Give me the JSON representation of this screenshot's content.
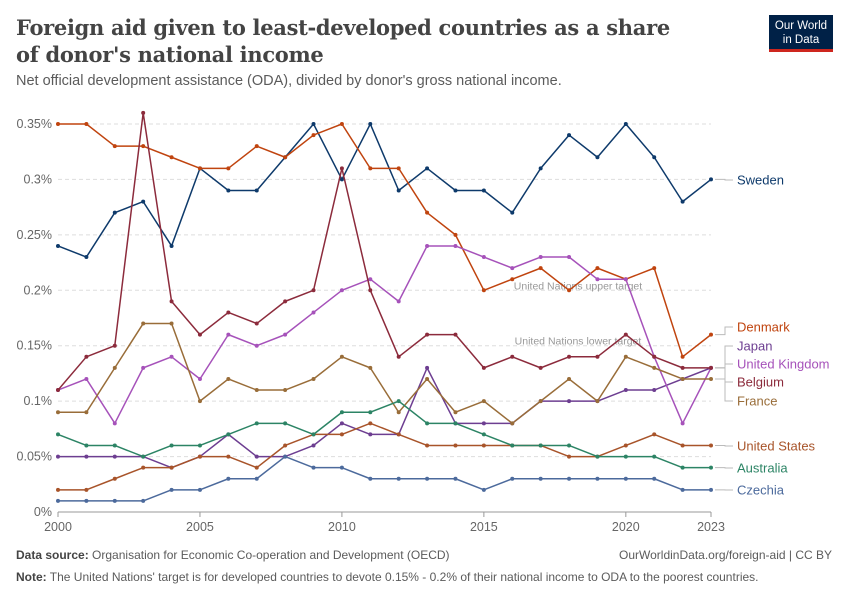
{
  "title": "Foreign aid given to least-developed countries as a share of donor's national income",
  "subtitle": "Net official development assistance (ODA), divided by donor's gross national income.",
  "logo": {
    "line1": "Our World",
    "line2": "in Data",
    "bg": "#002147",
    "accent": "#ce261e"
  },
  "footer": {
    "source_label": "Data source:",
    "source": "Organisation for Economic Co-operation and Development (OECD)",
    "url": "OurWorldinData.org/foreign-aid | CC BY",
    "note_label": "Note:",
    "note": "The United Nations' target is for developed countries to devote 0.15% - 0.2% of their national income to ODA to the poorest countries."
  },
  "chart_data": {
    "type": "line",
    "ylim": [
      0,
      0.35
    ],
    "yticks": [
      0,
      0.05,
      0.1,
      0.15,
      0.2,
      0.25,
      0.3,
      0.35
    ],
    "ytick_labels": [
      "0%",
      "0.05%",
      "0.1%",
      "0.15%",
      "0.2%",
      "0.25%",
      "0.3%",
      "0.35%"
    ],
    "xticks": [
      2000,
      2005,
      2010,
      2015,
      2020,
      2023
    ],
    "grid": "horizontal dashed",
    "legend": "right (line-end labels)",
    "x": [
      2000,
      2001,
      2002,
      2003,
      2004,
      2005,
      2006,
      2007,
      2008,
      2009,
      2010,
      2011,
      2012,
      2013,
      2014,
      2015,
      2016,
      2017,
      2018,
      2019,
      2020,
      2021,
      2022,
      2023
    ],
    "annotations": [
      {
        "text": "United Nations upper target",
        "y": 0.2
      },
      {
        "text": "United Nations lower target",
        "y": 0.15
      }
    ],
    "series": [
      {
        "name": "Sweden",
        "color": "#0e3a6b",
        "values": [
          0.24,
          0.23,
          0.27,
          0.28,
          0.24,
          0.31,
          0.29,
          0.29,
          0.32,
          0.35,
          0.3,
          0.35,
          0.29,
          0.31,
          0.29,
          0.29,
          0.27,
          0.31,
          0.34,
          0.32,
          0.35,
          0.32,
          0.28,
          0.3
        ]
      },
      {
        "name": "Denmark",
        "color": "#c0440f",
        "values": [
          0.35,
          0.35,
          0.33,
          0.33,
          0.32,
          0.31,
          0.31,
          0.33,
          0.32,
          0.34,
          0.35,
          0.31,
          0.31,
          0.27,
          0.25,
          0.2,
          0.21,
          0.22,
          0.2,
          0.22,
          0.21,
          0.22,
          0.14,
          0.16
        ]
      },
      {
        "name": "Japan",
        "color": "#6d3e91",
        "values": [
          0.05,
          0.05,
          0.05,
          0.05,
          0.04,
          0.05,
          0.07,
          0.05,
          0.05,
          0.06,
          0.08,
          0.07,
          0.07,
          0.13,
          0.08,
          0.08,
          0.08,
          0.1,
          0.1,
          0.1,
          0.11,
          0.11,
          0.12,
          0.13
        ]
      },
      {
        "name": "United Kingdom",
        "color": "#a652ba",
        "values": [
          0.11,
          0.12,
          0.08,
          0.13,
          0.14,
          0.12,
          0.16,
          0.15,
          0.16,
          0.18,
          0.2,
          0.21,
          0.19,
          0.24,
          0.24,
          0.23,
          0.22,
          0.23,
          0.23,
          0.21,
          0.21,
          0.14,
          0.08,
          0.13
        ]
      },
      {
        "name": "Belgium",
        "color": "#8c2b3c",
        "values": [
          0.11,
          0.14,
          0.15,
          0.36,
          0.19,
          0.16,
          0.18,
          0.17,
          0.19,
          0.2,
          0.31,
          0.2,
          0.14,
          0.16,
          0.16,
          0.13,
          0.14,
          0.13,
          0.14,
          0.14,
          0.16,
          0.14,
          0.13,
          0.13
        ]
      },
      {
        "name": "France",
        "color": "#996d39",
        "values": [
          0.09,
          0.09,
          0.13,
          0.17,
          0.17,
          0.1,
          0.12,
          0.11,
          0.11,
          0.12,
          0.14,
          0.13,
          0.09,
          0.12,
          0.09,
          0.1,
          0.08,
          0.1,
          0.12,
          0.1,
          0.14,
          0.13,
          0.12,
          0.12
        ]
      },
      {
        "name": "United States",
        "color": "#a8542a",
        "values": [
          0.02,
          0.02,
          0.03,
          0.04,
          0.04,
          0.05,
          0.05,
          0.04,
          0.06,
          0.07,
          0.07,
          0.08,
          0.07,
          0.06,
          0.06,
          0.06,
          0.06,
          0.06,
          0.05,
          0.05,
          0.06,
          0.07,
          0.06,
          0.06
        ]
      },
      {
        "name": "Australia",
        "color": "#2c8465",
        "values": [
          0.07,
          0.06,
          0.06,
          0.05,
          0.06,
          0.06,
          0.07,
          0.08,
          0.08,
          0.07,
          0.09,
          0.09,
          0.1,
          0.08,
          0.08,
          0.07,
          0.06,
          0.06,
          0.06,
          0.05,
          0.05,
          0.05,
          0.04,
          0.04
        ]
      },
      {
        "name": "Czechia",
        "color": "#4c6a9c",
        "values": [
          0.01,
          0.01,
          0.01,
          0.01,
          0.02,
          0.02,
          0.03,
          0.03,
          0.05,
          0.04,
          0.04,
          0.03,
          0.03,
          0.03,
          0.03,
          0.02,
          0.03,
          0.03,
          0.03,
          0.03,
          0.03,
          0.03,
          0.02,
          0.02
        ]
      }
    ]
  }
}
